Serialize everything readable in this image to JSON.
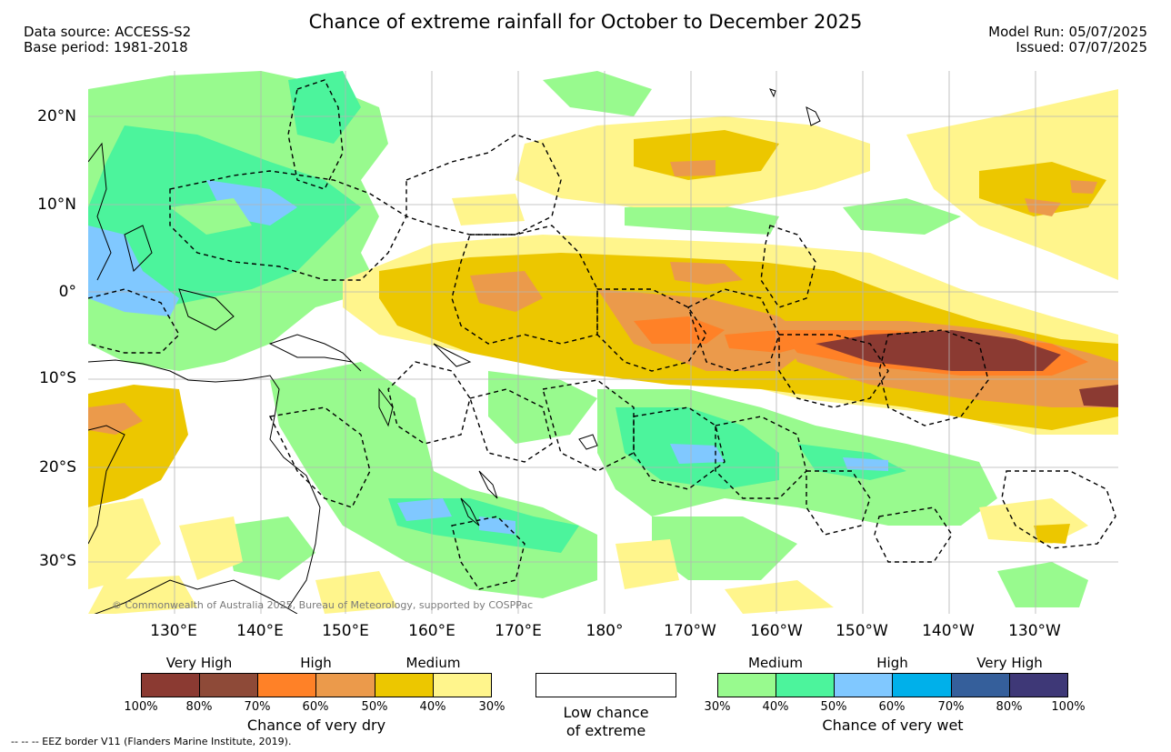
{
  "header": {
    "title": "Chance of extreme rainfall for October to December 2025",
    "source_line1": "Data source: ACCESS-S2",
    "source_line2": "Base period: 1981-2018",
    "run_line1": "Model Run: 05/07/2025",
    "run_line2": "Issued: 07/07/2025"
  },
  "map": {
    "lat_ticks": [
      "20°N",
      "10°N",
      "0°",
      "10°S",
      "20°S",
      "30°S"
    ],
    "lon_ticks": [
      "130°E",
      "140°E",
      "150°E",
      "160°E",
      "170°E",
      "180°",
      "170°W",
      "160°W",
      "150°W",
      "140°W",
      "130°W"
    ],
    "copyright": "© Commonwealth of Australia 2025, Bureau of Meteorology, supported by COSPPac",
    "gridline_color": "#b4b4b4",
    "eez_color": "#000000"
  },
  "legend": {
    "dry": {
      "categories": [
        "Very High",
        "High",
        "Medium"
      ],
      "colors": [
        "#8b3a32",
        "#8e4a38",
        "#ff8127",
        "#eb9a4b",
        "#ecc700",
        "#fff58c"
      ],
      "ticks": [
        "100%",
        "80%",
        "70%",
        "60%",
        "50%",
        "40%",
        "30%"
      ],
      "caption": "Chance of very dry"
    },
    "low": {
      "color": "#ffffff",
      "caption_line1": "Low chance",
      "caption_line2": "of extreme"
    },
    "wet": {
      "categories": [
        "Medium",
        "High",
        "Very High"
      ],
      "colors": [
        "#98fa8e",
        "#4cf49c",
        "#80c8ff",
        "#00b0ea",
        "#355f9b",
        "#3e3877"
      ],
      "ticks": [
        "30%",
        "40%",
        "50%",
        "60%",
        "70%",
        "80%",
        "100%"
      ],
      "caption": "Chance of very wet"
    }
  },
  "footer": {
    "note": "--  --  -- EEZ border V11 (Flanders Marine Institute, 2019)."
  }
}
